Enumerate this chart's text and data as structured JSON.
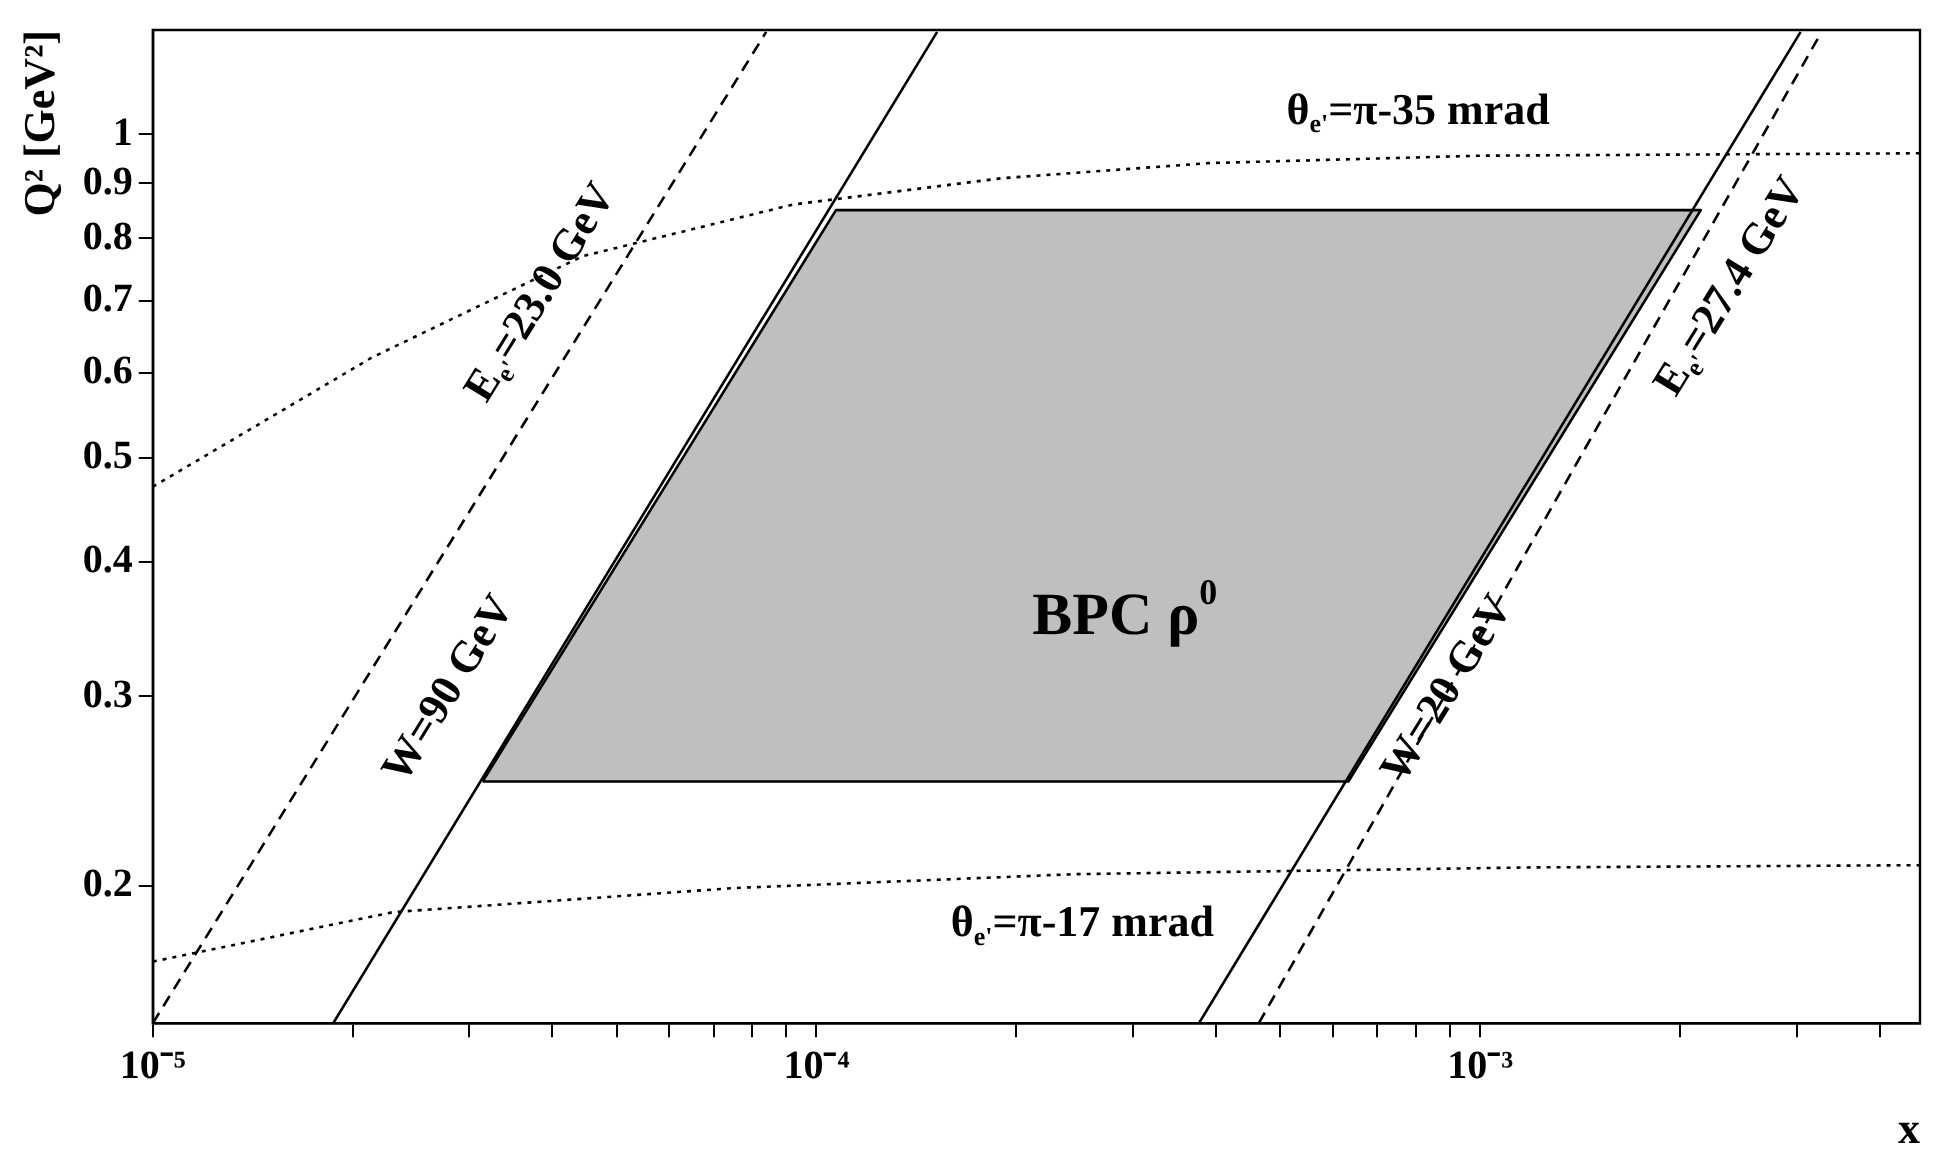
{
  "chart_data": {
    "type": "line",
    "xlabel": "x",
    "ylabel": "Q² [GeV²]",
    "log": "xy",
    "grid": false,
    "legend": false,
    "marker": "none",
    "xlim": [
      1e-05,
      0.0046
    ],
    "ylim": [
      0.149,
      1.25
    ],
    "xticks": [
      {
        "value": 1e-05,
        "label": "10⁻⁵"
      },
      {
        "value": 2e-05,
        "label": null
      },
      {
        "value": 3e-05,
        "label": null
      },
      {
        "value": 4e-05,
        "label": null
      },
      {
        "value": 5e-05,
        "label": null
      },
      {
        "value": 6e-05,
        "label": null
      },
      {
        "value": 7e-05,
        "label": null
      },
      {
        "value": 8e-05,
        "label": null
      },
      {
        "value": 9e-05,
        "label": null
      },
      {
        "value": 0.0001,
        "label": "10⁻⁴"
      },
      {
        "value": 0.0002,
        "label": null
      },
      {
        "value": 0.0003,
        "label": null
      },
      {
        "value": 0.0004,
        "label": null
      },
      {
        "value": 0.0005,
        "label": null
      },
      {
        "value": 0.0006,
        "label": null
      },
      {
        "value": 0.0007,
        "label": null
      },
      {
        "value": 0.0008,
        "label": null
      },
      {
        "value": 0.0009,
        "label": null
      },
      {
        "value": 0.001,
        "label": "10⁻³"
      },
      {
        "value": 0.002,
        "label": null
      },
      {
        "value": 0.003,
        "label": null
      },
      {
        "value": 0.004,
        "label": null
      }
    ],
    "yticks": [
      0.2,
      0.3,
      0.4,
      0.5,
      0.6,
      0.7,
      0.8,
      0.9,
      1
    ],
    "series": [
      {
        "type": "area",
        "color": "#000000",
        "line_style": "solid",
        "x": [
          3.14e-05,
          0.000633,
          0.00215,
          0.000107,
          3.14e-05
        ],
        "values": [
          0.25,
          0.25,
          0.85,
          0.85,
          0.25
        ]
      },
      {
        "type": "line",
        "color": "#000000",
        "line_style": "solid",
        "x": [
          1.87e-05,
          0.000152
        ],
        "values": [
          0.149,
          1.245
        ]
      },
      {
        "type": "line",
        "color": "#000000",
        "line_style": "solid",
        "x": [
          0.000377,
          0.00304
        ],
        "values": [
          0.149,
          1.245
        ]
      },
      {
        "type": "line",
        "color": "#000000",
        "line_style": "dashed",
        "x": [
          1e-05,
          8.4e-05
        ],
        "values": [
          0.149,
          1.245
        ]
      },
      {
        "type": "line",
        "color": "#000000",
        "line_style": "dashed",
        "x": [
          0.000464,
          0.00327
        ],
        "values": [
          0.149,
          1.245
        ]
      },
      {
        "type": "line",
        "color": "#000000",
        "line_style": "dotted",
        "x": [
          1e-05,
          2.14e-05,
          4.44e-05,
          9.2e-05,
          0.00019,
          0.00039,
          0.001,
          0.0046
        ],
        "values": [
          0.47,
          0.62,
          0.77,
          0.86,
          0.91,
          0.94,
          0.955,
          0.96
        ]
      },
      {
        "type": "line",
        "color": "#000000",
        "line_style": "dotted",
        "x": [
          1e-05,
          2.3e-05,
          7.5e-05,
          0.000244,
          0.00118,
          0.0046
        ],
        "values": [
          0.17,
          0.189,
          0.199,
          0.205,
          0.208,
          0.209
        ]
      }
    ],
    "annotations": [
      "E$_{e'}$=23.0 GeV",
      "E$_{e'}$=27.4 GeV",
      "W=90 GeV",
      "W=20 GeV",
      "θ$_{e'}$=π-35 mrad",
      "θ$_{e'}$=π-17 mrad",
      "BPC ρ$^{0}$"
    ]
  }
}
